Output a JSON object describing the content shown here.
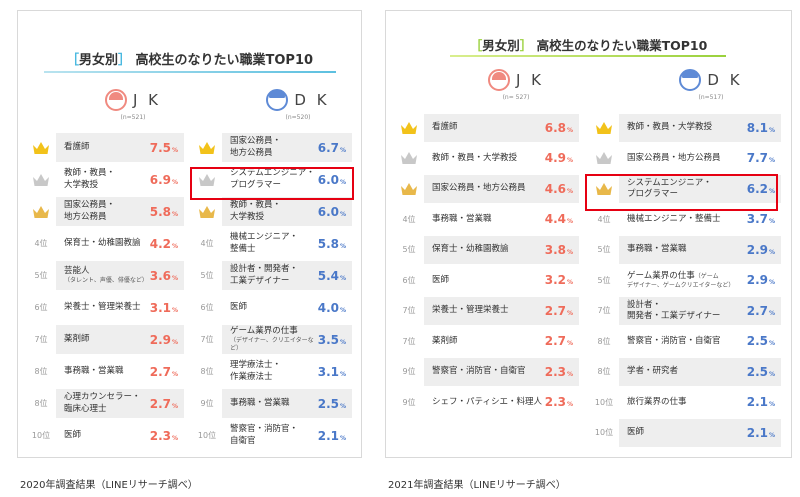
{
  "captions": {
    "left": "2020年調査結果（LINEリサーチ調べ）",
    "right": "2021年調査結果（LINEリサーチ調べ）"
  },
  "panel2020": {
    "title_bracket_open": "［",
    "title_tag": "男女別",
    "title_bracket_close": "］",
    "title_main": "高校生のなりたい職業TOP10",
    "jk_label": "J K",
    "jk_n": "(n=521)",
    "dk_label": "D K",
    "dk_n": "(n=520)",
    "jk_rows": [
      {
        "rank": "",
        "job": "看護師",
        "sub": "",
        "value": "7.5",
        "unit": "%"
      },
      {
        "rank": "",
        "job": "教師・教員・",
        "sub2": "大学教授",
        "value": "6.9",
        "unit": "%"
      },
      {
        "rank": "",
        "job": "国家公務員・",
        "sub2": "地方公務員",
        "value": "5.8",
        "unit": "%"
      },
      {
        "rank": "4位",
        "job": "保育士・幼稚園教諭",
        "value": "4.2",
        "unit": "%"
      },
      {
        "rank": "5位",
        "job": "芸能人",
        "sub": "（タレント、声優、俳優など）",
        "value": "3.6",
        "unit": "%"
      },
      {
        "rank": "6位",
        "job": "栄養士・管理栄養士",
        "value": "3.1",
        "unit": "%"
      },
      {
        "rank": "7位",
        "job": "薬剤師",
        "value": "2.9",
        "unit": "%"
      },
      {
        "rank": "8位",
        "job": "事務職・営業職",
        "value": "2.7",
        "unit": "%"
      },
      {
        "rank": "8位",
        "job": "心理カウンセラー・",
        "sub2": "臨床心理士",
        "value": "2.7",
        "unit": "%"
      },
      {
        "rank": "10位",
        "job": "医師",
        "value": "2.3",
        "unit": "%"
      }
    ],
    "dk_rows": [
      {
        "rank": "",
        "job": "国家公務員・",
        "sub2": "地方公務員",
        "value": "6.7",
        "unit": "%"
      },
      {
        "rank": "",
        "job": "システムエンジニア・",
        "sub2": "プログラマー",
        "value": "6.0",
        "unit": "%"
      },
      {
        "rank": "",
        "job": "教師・教員・",
        "sub2": "大学教授",
        "value": "6.0",
        "unit": "%"
      },
      {
        "rank": "4位",
        "job": "機械エンジニア・",
        "sub2": "整備士",
        "value": "5.8",
        "unit": "%"
      },
      {
        "rank": "5位",
        "job": "設計者・開発者・",
        "sub2": "工業デザイナー",
        "value": "5.4",
        "unit": "%"
      },
      {
        "rank": "6位",
        "job": "医師",
        "value": "4.0",
        "unit": "%"
      },
      {
        "rank": "7位",
        "job": "ゲーム業界の仕事",
        "sub": "（デザイナー、クリエイターなど）",
        "value": "3.5",
        "unit": "%"
      },
      {
        "rank": "8位",
        "job": "理学療法士・",
        "sub2": "作業療法士",
        "value": "3.1",
        "unit": "%"
      },
      {
        "rank": "9位",
        "job": "事務職・営業職",
        "value": "2.5",
        "unit": "%"
      },
      {
        "rank": "10位",
        "job": "警察官・消防官・",
        "sub2": "自衛官",
        "value": "2.1",
        "unit": "%"
      }
    ]
  },
  "panel2021": {
    "title_bracket_open": "［",
    "title_tag": "男女別",
    "title_bracket_close": "］",
    "title_main": "高校生のなりたい職業TOP10",
    "jk_label": "J K",
    "jk_n": "(n= 527)",
    "dk_label": "D K",
    "dk_n": "(n=517)",
    "jk_rows": [
      {
        "rank": "",
        "job": "看護師",
        "value": "6.8",
        "unit": "%"
      },
      {
        "rank": "",
        "job": "教師・教員・大学教授",
        "value": "4.9",
        "unit": "%"
      },
      {
        "rank": "",
        "job": "国家公務員・地方公務員",
        "value": "4.6",
        "unit": "%"
      },
      {
        "rank": "4位",
        "job": "事務職・営業職",
        "value": "4.4",
        "unit": "%"
      },
      {
        "rank": "5位",
        "job": "保育士・幼稚園教諭",
        "value": "3.8",
        "unit": "%"
      },
      {
        "rank": "6位",
        "job": "医師",
        "value": "3.2",
        "unit": "%"
      },
      {
        "rank": "7位",
        "job": "栄養士・管理栄養士",
        "value": "2.7",
        "unit": "%"
      },
      {
        "rank": "7位",
        "job": "薬剤師",
        "value": "2.7",
        "unit": "%"
      },
      {
        "rank": "9位",
        "job": "警察官・消防官・自衛官",
        "value": "2.3",
        "unit": "%"
      },
      {
        "rank": "9位",
        "job": "シェフ・パティシエ・料理人",
        "value": "2.3",
        "unit": "%"
      }
    ],
    "dk_rows": [
      {
        "rank": "",
        "job": "教師・教員・大学教授",
        "value": "8.1",
        "unit": "%"
      },
      {
        "rank": "",
        "job": "国家公務員・地方公務員",
        "value": "7.7",
        "unit": "%"
      },
      {
        "rank": "",
        "job": "システムエンジニア・",
        "sub2": "プログラマー",
        "value": "6.2",
        "unit": "%"
      },
      {
        "rank": "4位",
        "job": "機械エンジニア・整備士",
        "value": "3.7",
        "unit": "%"
      },
      {
        "rank": "5位",
        "job": "事務職・営業職",
        "value": "2.9",
        "unit": "%"
      },
      {
        "rank": "5位",
        "job": "ゲーム業界の仕事",
        "jobsub": "（ゲーム",
        "sub": "デザイナー、ゲームクリエイターなど）",
        "value": "2.9",
        "unit": "%"
      },
      {
        "rank": "7位",
        "job": "設計者・",
        "sub2": "開発者・工業デザイナー",
        "value": "2.7",
        "unit": "%"
      },
      {
        "rank": "8位",
        "job": "警察官・消防官・自衛官",
        "value": "2.5",
        "unit": "%"
      },
      {
        "rank": "8位",
        "job": "学者・研究者",
        "value": "2.5",
        "unit": "%"
      },
      {
        "rank": "10位",
        "job": "旅行業界の仕事",
        "value": "2.1",
        "unit": "%"
      },
      {
        "rank": "10位",
        "job": "医師",
        "value": "2.1",
        "unit": "%"
      }
    ]
  },
  "colors": {
    "jk_value": "#ef6b5a",
    "dk_value": "#4a78c8",
    "highlight": "#e60012",
    "gold": "#f2c21a",
    "silver": "#c8c8c8",
    "bronze": "#e8b84a"
  }
}
